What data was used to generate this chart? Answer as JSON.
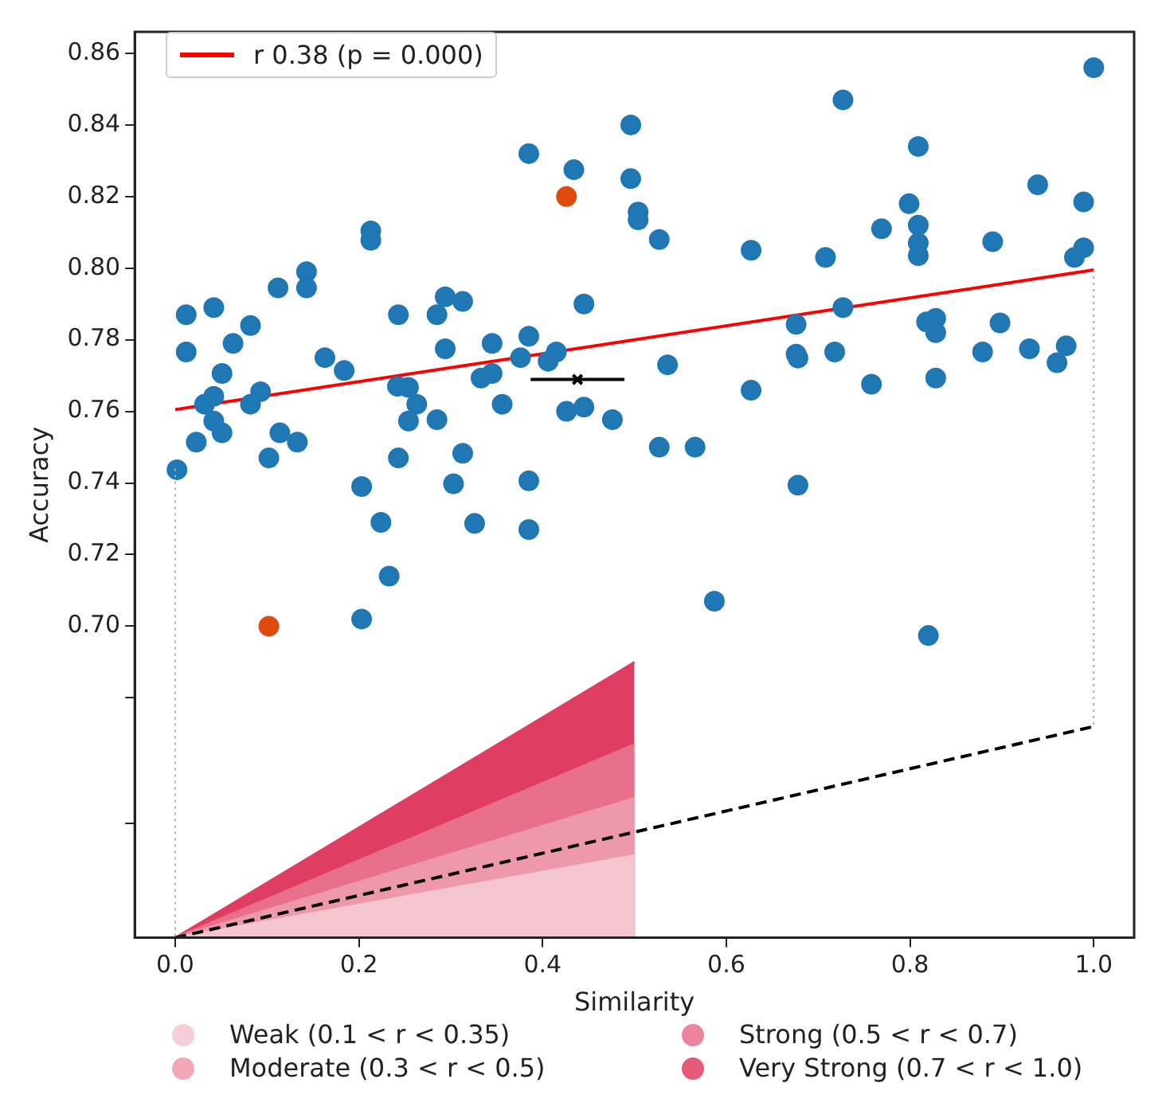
{
  "chart_data": {
    "type": "scatter",
    "xlabel": "Similarity",
    "ylabel": "Accuracy",
    "xlim": [
      -0.044,
      1.044
    ],
    "xticks": [
      {
        "value": 0,
        "label": "0.0"
      },
      0.2,
      0.4,
      0.6,
      0.8,
      {
        "value": 1,
        "label": "1.0"
      }
    ],
    "ylim": [
      0.613,
      0.866
    ],
    "yticks": [
      {
        "value": 0.645,
        "label": null
      },
      {
        "value": 0.68,
        "label": null
      },
      {
        "value": 0.7,
        "label": "0.70"
      },
      {
        "value": 0.72,
        "label": "0.72"
      },
      {
        "value": 0.74,
        "label": "0.74"
      },
      {
        "value": 0.76,
        "label": "0.76"
      },
      {
        "value": 0.78,
        "label": "0.78"
      },
      {
        "value": 0.8,
        "label": "0.80"
      },
      {
        "value": 0.82,
        "label": "0.82"
      },
      {
        "value": 0.84,
        "label": "0.84"
      },
      {
        "value": 0.86,
        "label": "0.86"
      }
    ],
    "grid": false,
    "legend": "bottom",
    "marker": "circle",
    "series": [
      {
        "type": "area",
        "name": "Weak (0.1 < r < 0.35)",
        "color": "#f5c6d0",
        "marker": "none",
        "x": [
          0,
          0.5
        ],
        "values": [
          0.613,
          0.636
        ]
      },
      {
        "type": "area",
        "name": "Moderate (0.3 < r < 0.5)",
        "color": "#ee98ab",
        "marker": "none",
        "x": [
          0,
          0.5
        ],
        "values": [
          0.613,
          0.652
        ]
      },
      {
        "type": "area",
        "name": "Strong (0.5 < r < 0.7)",
        "color": "#e9708a",
        "marker": "none",
        "x": [
          0,
          0.5
        ],
        "values": [
          0.613,
          0.667
        ]
      },
      {
        "type": "area",
        "name": "Very Strong (0.7 < r < 1.0)",
        "color": "#e03d62",
        "marker": "none",
        "x": [
          0,
          0.5
        ],
        "values": [
          0.613,
          0.69
        ]
      },
      {
        "type": "line",
        "color": "#000000",
        "line_style": "dashed",
        "marker": "none",
        "x": [
          0,
          1
        ],
        "values": [
          0.613,
          0.672
        ]
      },
      {
        "type": "line",
        "color": "#b0b0b0",
        "line_style": "dotted",
        "marker": "none",
        "x": [
          0,
          0
        ],
        "values": [
          0.744,
          0.613
        ]
      },
      {
        "type": "line",
        "color": "#b0b0b0",
        "line_style": "dotted",
        "marker": "none",
        "x": [
          1,
          1
        ],
        "values": [
          0.7995,
          0.672
        ]
      },
      {
        "color": "#1f77b4",
        "x": [
          0.385,
          0.434,
          0.496,
          0.496,
          0.504,
          0.504,
          0.213,
          0.213,
          0.012,
          0.042,
          0.082,
          0.063,
          0.012,
          0.112,
          0.143,
          0.143,
          0.163,
          0.243,
          0.285,
          0.294,
          0.313,
          0.345,
          0.385,
          0.445,
          0.415,
          0.376,
          0.294,
          0.727,
          1.0,
          0.527,
          0.627,
          0.708,
          0.769,
          0.799,
          0.809,
          0.809,
          0.809,
          0.809,
          0.89,
          0.939,
          0.989,
          0.989,
          0.979,
          0.727,
          0.676,
          0.818,
          0.828,
          0.828,
          0.898,
          0.676,
          0.718,
          0.879,
          0.93,
          0.97,
          0.536,
          0.96,
          0.051,
          0.042,
          0.032,
          0.082,
          0.093,
          0.042,
          0.051,
          0.023,
          0.002,
          0.102,
          0.114,
          0.133,
          0.184,
          0.345,
          0.333,
          0.406,
          0.242,
          0.254,
          0.263,
          0.254,
          0.285,
          0.356,
          0.243,
          0.313,
          0.303,
          0.385,
          0.203,
          0.224,
          0.326,
          0.385,
          0.233,
          0.203,
          0.426,
          0.445,
          0.476,
          0.527,
          0.566,
          0.678,
          0.587,
          0.82,
          0.627,
          0.758,
          0.828,
          0.678
        ],
        "values": [
          0.832,
          0.8275,
          0.84,
          0.825,
          0.8157,
          0.8135,
          0.8104,
          0.8078,
          0.787,
          0.789,
          0.784,
          0.779,
          0.7766,
          0.7945,
          0.799,
          0.7945,
          0.775,
          0.787,
          0.787,
          0.792,
          0.7907,
          0.779,
          0.781,
          0.79,
          0.7766,
          0.775,
          0.7775,
          0.847,
          0.856,
          0.808,
          0.805,
          0.803,
          0.811,
          0.818,
          0.834,
          0.812,
          0.807,
          0.8035,
          0.8074,
          0.8233,
          0.8185,
          0.8057,
          0.803,
          0.789,
          0.7843,
          0.785,
          0.786,
          0.782,
          0.7847,
          0.776,
          0.7766,
          0.7766,
          0.7775,
          0.7783,
          0.773,
          0.7736,
          0.7706,
          0.7642,
          0.762,
          0.762,
          0.7655,
          0.7573,
          0.754,
          0.7514,
          0.7437,
          0.747,
          0.754,
          0.7514,
          0.7714,
          0.7706,
          0.7693,
          0.774,
          0.767,
          0.7667,
          0.762,
          0.7573,
          0.7577,
          0.762,
          0.747,
          0.7483,
          0.7398,
          0.7406,
          0.739,
          0.729,
          0.7287,
          0.727,
          0.714,
          0.702,
          0.76,
          0.7612,
          0.7577,
          0.75,
          0.75,
          0.7394,
          0.707,
          0.6974,
          0.7659,
          0.7676,
          0.7693,
          0.7749
        ]
      },
      {
        "color": "#e04a0e",
        "x": [
          0.426,
          0.102
        ],
        "values": [
          0.82,
          0.7
        ]
      },
      {
        "color": "#000000",
        "marker": "cross",
        "x": [
          0.438
        ],
        "values": [
          0.7689
        ],
        "xerrors": [
          [
            0.387,
            0.489
          ]
        ]
      },
      {
        "type": "line",
        "name": "r 0.38 (p = 0.000)",
        "color": "#ff0000",
        "line_style": "solid",
        "marker": "none",
        "x": [
          0,
          1
        ],
        "values": [
          0.7605,
          0.7995
        ]
      }
    ]
  }
}
